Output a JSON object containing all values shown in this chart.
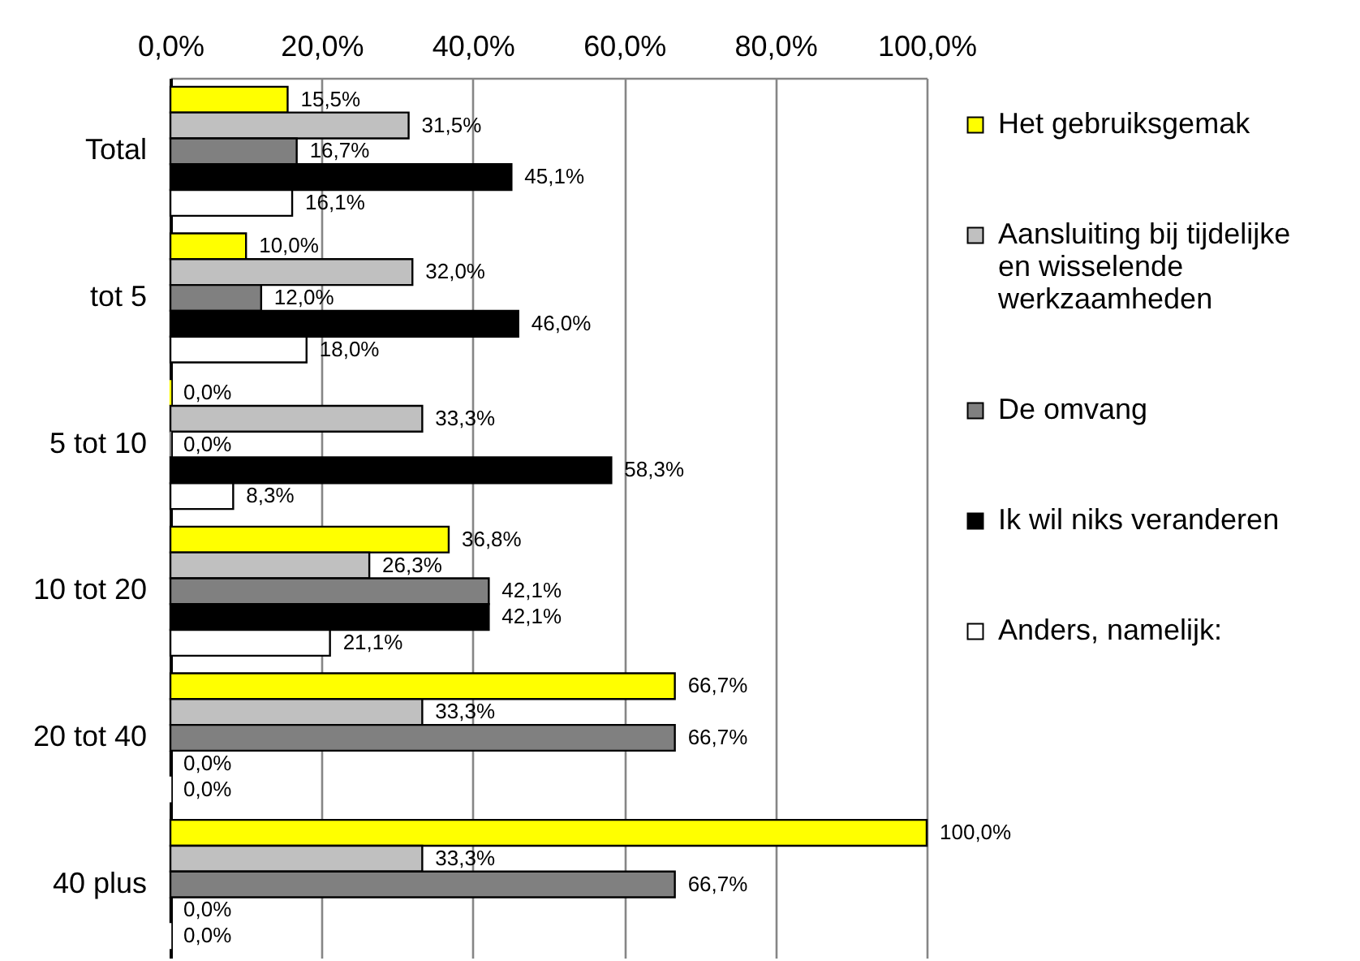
{
  "chart_data": {
    "type": "bar",
    "orientation": "horizontal",
    "categories": [
      "Total",
      "tot 5",
      "5 tot 10",
      "10 tot 20",
      "20 tot 40",
      "40 plus"
    ],
    "series": [
      {
        "name": "Het gebruiksgemak",
        "color": "#ffff00",
        "values": [
          15.5,
          10.0,
          0.0,
          36.8,
          66.7,
          100.0
        ],
        "value_labels": [
          "15,5%",
          "10,0%",
          "0,0%",
          "36,8%",
          "66,7%",
          "100,0%"
        ]
      },
      {
        "name": "Aansluiting bij tijdelijke en wisselende werkzaamheden",
        "color": "#c0c0c0",
        "values": [
          31.5,
          32.0,
          33.3,
          26.3,
          33.3,
          33.3
        ],
        "value_labels": [
          "31,5%",
          "32,0%",
          "33,3%",
          "26,3%",
          "33,3%",
          "33,3%"
        ]
      },
      {
        "name": "De omvang",
        "color": "#808080",
        "values": [
          16.7,
          12.0,
          0.0,
          42.1,
          66.7,
          66.7
        ],
        "value_labels": [
          "16,7%",
          "12,0%",
          "0,0%",
          "42,1%",
          "66,7%",
          "66,7%"
        ]
      },
      {
        "name": "Ik wil niks veranderen",
        "color": "#000000",
        "values": [
          45.1,
          46.0,
          58.3,
          42.1,
          0.0,
          0.0
        ],
        "value_labels": [
          "45,1%",
          "46,0%",
          "58,3%",
          "42,1%",
          "0,0%",
          "0,0%"
        ]
      },
      {
        "name": "Anders, namelijk:",
        "color": "#ffffff",
        "values": [
          16.1,
          18.0,
          8.3,
          21.1,
          0.0,
          0.0
        ],
        "value_labels": [
          "16,1%",
          "18,0%",
          "8,3%",
          "21,1%",
          "0,0%",
          "0,0%"
        ]
      }
    ],
    "xlim": [
      0,
      100
    ],
    "xticks": [
      {
        "value": 0,
        "label": "0,0%"
      },
      {
        "value": 20,
        "label": "20,0%"
      },
      {
        "value": 40,
        "label": "40,0%"
      },
      {
        "value": 60,
        "label": "60,0%"
      },
      {
        "value": 80,
        "label": "80,0%"
      },
      {
        "value": 100,
        "label": "100,0%"
      }
    ],
    "grid": "x",
    "legend": "right"
  }
}
